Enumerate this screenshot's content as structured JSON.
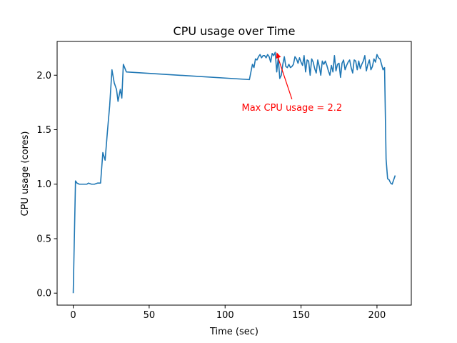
{
  "chart_data": {
    "type": "line",
    "title": "CPU usage over Time",
    "xlabel": "Time (sec)",
    "ylabel": "CPU usage (cores)",
    "xlim": [
      -10.6,
      222.6
    ],
    "ylim": [
      -0.11,
      2.31
    ],
    "xticks": [
      0,
      50,
      100,
      150,
      200
    ],
    "yticks": [
      0.0,
      0.5,
      1.0,
      1.5,
      2.0
    ],
    "xtick_labels": [
      "0",
      "50",
      "100",
      "150",
      "200"
    ],
    "ytick_labels": [
      "0.0",
      "0.5",
      "1.0",
      "1.5",
      "2.0"
    ],
    "grid": false,
    "line_color": "#1f77b4",
    "series": [
      {
        "x": [
          0,
          1.5,
          2.5,
          4,
          6,
          8,
          9,
          10,
          12,
          14,
          16,
          18,
          19.5,
          21,
          22.5,
          24,
          25.5,
          27,
          28.5,
          29.5,
          31,
          32,
          33,
          35,
          116,
          118,
          119,
          120,
          121,
          122,
          123,
          124,
          125,
          126,
          127,
          128,
          129,
          130,
          131,
          132,
          133,
          134,
          135,
          136,
          137,
          138,
          139,
          140,
          141,
          142,
          143,
          144,
          145,
          146,
          147,
          148,
          149,
          150,
          151,
          152,
          153,
          154,
          155,
          156,
          157,
          158,
          159,
          160,
          161,
          162,
          163,
          164,
          165,
          166,
          167,
          168,
          169,
          170,
          171,
          172,
          173,
          174,
          175,
          176,
          177,
          178,
          179,
          180,
          181,
          182,
          183,
          184,
          185,
          186,
          187,
          188,
          189,
          190,
          191,
          192,
          193,
          194,
          195,
          196,
          197,
          198,
          199,
          200,
          201,
          202,
          203,
          204,
          205,
          206,
          207,
          208,
          209,
          210,
          211,
          212
        ],
        "y": [
          0.0,
          1.03,
          1.01,
          1.0,
          1.0,
          1.0,
          1.0,
          1.01,
          1.0,
          1.0,
          1.01,
          1.01,
          1.29,
          1.22,
          1.48,
          1.72,
          2.05,
          1.93,
          1.87,
          1.76,
          1.87,
          1.79,
          2.1,
          2.03,
          1.96,
          2.1,
          2.07,
          2.15,
          2.14,
          2.17,
          2.19,
          2.16,
          2.18,
          2.18,
          2.16,
          2.19,
          2.17,
          2.12,
          2.2,
          2.18,
          2.21,
          2.03,
          2.16,
          1.97,
          2.0,
          2.1,
          2.17,
          2.08,
          2.07,
          2.1,
          2.07,
          2.08,
          2.1,
          2.17,
          2.15,
          2.11,
          2.16,
          2.12,
          2.09,
          2.18,
          2.03,
          2.14,
          2.13,
          2.0,
          2.15,
          2.12,
          2.06,
          2.02,
          2.14,
          2.08,
          2.0,
          2.13,
          2.1,
          2.13,
          2.09,
          2.04,
          2.0,
          2.09,
          2.03,
          2.18,
          2.04,
          2.1,
          2.11,
          1.98,
          2.11,
          2.14,
          2.05,
          2.09,
          2.12,
          2.14,
          2.07,
          2.02,
          2.14,
          2.13,
          2.05,
          2.13,
          2.06,
          2.1,
          2.13,
          2.18,
          2.04,
          2.1,
          2.14,
          2.05,
          2.08,
          2.15,
          2.12,
          2.19,
          2.16,
          2.15,
          2.1,
          2.05,
          2.07,
          1.23,
          1.05,
          1.04,
          1.01,
          1.0,
          1.04,
          1.08
        ]
      }
    ],
    "annotation": {
      "text": "Max CPU usage = 2.2",
      "color": "#ff0000",
      "point": [
        134,
        2.21
      ],
      "text_anchor_at": [
        144,
        1.78
      ]
    }
  }
}
